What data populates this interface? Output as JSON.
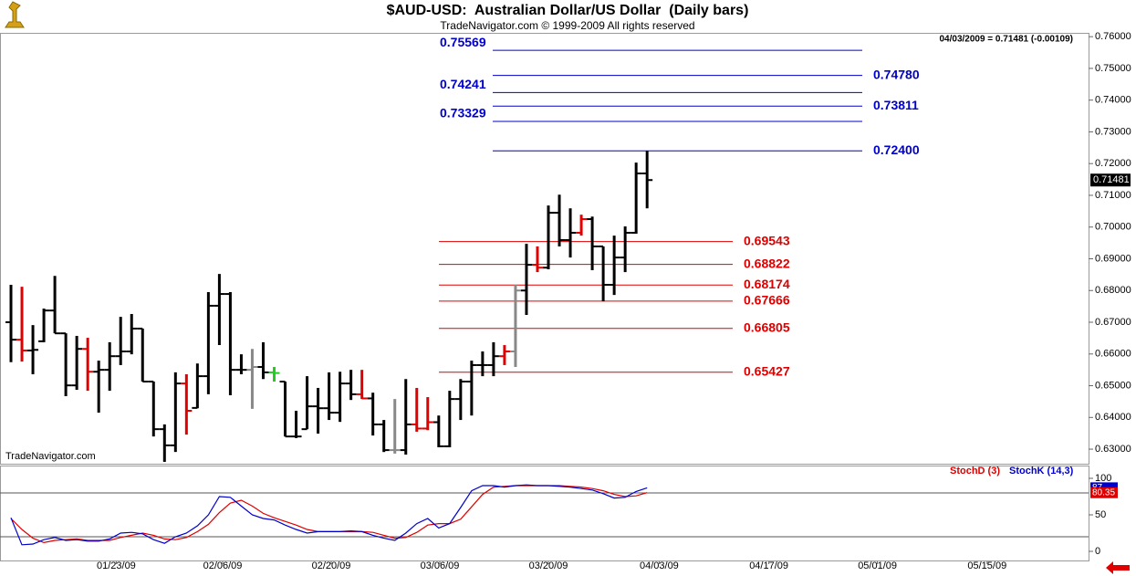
{
  "chart_data": [
    {
      "type": "ohlc",
      "title": "$AUD-USD:  Australian Dollar/US Dollar  (Daily bars)",
      "subtitle": "TradeNavigator.com © 1999-2009 All rights reserved",
      "info": "04/03/2009 = 0.71481 (-0.00109)",
      "watermark": "TradeNavigator.com",
      "last_price": 0.71481,
      "x": [
        0,
        1,
        2,
        3,
        4,
        5,
        6,
        7,
        8,
        9,
        10,
        11,
        12,
        13,
        14,
        15,
        16,
        17,
        18,
        19,
        20,
        21,
        22,
        23,
        24,
        25,
        26,
        27,
        28,
        29,
        30,
        31,
        32,
        33,
        34,
        35,
        36,
        37,
        38,
        39,
        40,
        41,
        42,
        43,
        44,
        45,
        46,
        47,
        48,
        49,
        50,
        51,
        52,
        53,
        54,
        55,
        56,
        57,
        58
      ],
      "open": [
        0.67,
        0.6645,
        0.6611,
        0.664,
        0.6737,
        0.6665,
        0.6501,
        0.6616,
        0.6544,
        0.655,
        0.6593,
        0.6608,
        0.668,
        0.6513,
        0.6363,
        0.6312,
        0.6507,
        0.643,
        0.653,
        0.6752,
        0.6789,
        0.655,
        0.655,
        0.6559,
        0.6542,
        0.6513,
        0.634,
        0.6363,
        0.6435,
        0.6429,
        0.6415,
        0.6507,
        0.6473,
        0.646,
        0.6378,
        0.6297,
        0.6297,
        0.6378,
        0.6365,
        0.6385,
        0.6309,
        0.6458,
        0.6513,
        0.6565,
        0.6565,
        0.6593,
        0.6608,
        0.68,
        0.6881,
        0.6872,
        0.7045,
        0.6959,
        0.6982,
        0.7025,
        0.6939,
        0.6818,
        0.6904,
        0.6982,
        0.7169
      ],
      "high": [
        0.6818,
        0.6812,
        0.6691,
        0.6743,
        0.6846,
        0.6665,
        0.6657,
        0.6651,
        0.6579,
        0.6637,
        0.6717,
        0.6726,
        0.668,
        0.6513,
        0.6378,
        0.6542,
        0.6536,
        0.657,
        0.6795,
        0.6852,
        0.6795,
        0.6599,
        0.6616,
        0.6637,
        0.6559,
        0.6513,
        0.6421,
        0.653,
        0.6493,
        0.6542,
        0.6544,
        0.655,
        0.655,
        0.6478,
        0.6392,
        0.6458,
        0.6521,
        0.6493,
        0.6464,
        0.6406,
        0.6484,
        0.6521,
        0.6579,
        0.6608,
        0.6637,
        0.6628,
        0.6818,
        0.6947,
        0.6939,
        0.7068,
        0.7102,
        0.7059,
        0.7039,
        0.7033,
        0.6939,
        0.6973,
        0.7002,
        0.7203,
        0.724
      ],
      "low": [
        0.6574,
        0.6576,
        0.6536,
        0.6637,
        0.6665,
        0.6467,
        0.6487,
        0.6484,
        0.6415,
        0.6484,
        0.6565,
        0.6599,
        0.6513,
        0.634,
        0.626,
        0.6291,
        0.6346,
        0.6429,
        0.6473,
        0.6628,
        0.647,
        0.6536,
        0.6427,
        0.6521,
        0.6513,
        0.634,
        0.6335,
        0.6363,
        0.6349,
        0.6392,
        0.6386,
        0.6455,
        0.6458,
        0.6343,
        0.6291,
        0.6286,
        0.6283,
        0.6355,
        0.636,
        0.6306,
        0.6306,
        0.6392,
        0.6406,
        0.653,
        0.653,
        0.6565,
        0.6559,
        0.6723,
        0.6858,
        0.6867,
        0.6939,
        0.6904,
        0.6973,
        0.6864,
        0.6766,
        0.6786,
        0.6858,
        0.6979,
        0.7059
      ],
      "close": [
        0.6645,
        0.6611,
        0.6613,
        0.6737,
        0.6665,
        0.6501,
        0.6616,
        0.6544,
        0.655,
        0.6593,
        0.6608,
        0.668,
        0.6513,
        0.6363,
        0.6312,
        0.6507,
        0.6421,
        0.653,
        0.6752,
        0.6789,
        0.655,
        0.655,
        0.6559,
        0.6542,
        0.654,
        0.634,
        0.634,
        0.6435,
        0.6429,
        0.6415,
        0.6507,
        0.6473,
        0.646,
        0.6378,
        0.6297,
        0.6297,
        0.6378,
        0.6365,
        0.6385,
        0.6309,
        0.6458,
        0.6513,
        0.6565,
        0.6565,
        0.6593,
        0.6608,
        0.68,
        0.6881,
        0.6872,
        0.7045,
        0.6959,
        0.6982,
        0.7025,
        0.6939,
        0.6818,
        0.6904,
        0.6982,
        0.7169,
        0.71481
      ],
      "bar_colors": [
        "#000000",
        "#e00000",
        "#000000",
        "#000000",
        "#000000",
        "#000000",
        "#000000",
        "#e00000",
        "#000000",
        "#000000",
        "#000000",
        "#000000",
        "#000000",
        "#000000",
        "#000000",
        "#000000",
        "#e00000",
        "#000000",
        "#000000",
        "#000000",
        "#000000",
        "#000000",
        "#888888",
        "#000000",
        "#22cc22",
        "#000000",
        "#000000",
        "#000000",
        "#000000",
        "#000000",
        "#000000",
        "#000000",
        "#e00000",
        "#000000",
        "#000000",
        "#888888",
        "#000000",
        "#e00000",
        "#e00000",
        "#000000",
        "#000000",
        "#000000",
        "#000000",
        "#000000",
        "#000000",
        "#e00000",
        "#888888",
        "#000000",
        "#e00000",
        "#000000",
        "#000000",
        "#000000",
        "#e00000",
        "#000000",
        "#000000",
        "#000000",
        "#000000",
        "#000000",
        "#000000"
      ],
      "xlim": [
        -1,
        98.25
      ],
      "ylim": [
        0.6257,
        0.7612
      ],
      "yticks": [
        {
          "value": 0.63,
          "label": "0.63000"
        },
        {
          "value": 0.64,
          "label": "0.64000"
        },
        {
          "value": 0.65,
          "label": "0.65000"
        },
        {
          "value": 0.66,
          "label": "0.66000"
        },
        {
          "value": 0.67,
          "label": "0.67000"
        },
        {
          "value": 0.68,
          "label": "0.68000"
        },
        {
          "value": 0.69,
          "label": "0.69000"
        },
        {
          "value": 0.7,
          "label": "0.70000"
        },
        {
          "value": 0.71,
          "label": "0.71000"
        },
        {
          "value": 0.72,
          "label": "0.72000"
        },
        {
          "value": 0.73,
          "label": "0.73000"
        },
        {
          "value": 0.74,
          "label": "0.74000"
        },
        {
          "value": 0.75,
          "label": "0.75000"
        },
        {
          "value": 0.76,
          "label": "0.76000"
        }
      ],
      "projection_levels": [
        {
          "value": 0.75569,
          "color": "#0000cc",
          "label_side": "left"
        },
        {
          "value": 0.7478,
          "label": "0.74780",
          "color": "#0000cc",
          "label_side": "right"
        },
        {
          "value": 0.74241,
          "color": "#0000cc",
          "label_side": "left"
        },
        {
          "value": 0.73811,
          "color": "#0000cc",
          "label_side": "right"
        },
        {
          "value": 0.73329,
          "color": "#0000cc",
          "label_side": "left"
        },
        {
          "value": 0.724,
          "label": "0.72400",
          "color": "#0000cc",
          "label_side": "right"
        }
      ],
      "retracement_levels": [
        {
          "value": 0.69543,
          "color": "#dd0000",
          "label_side": "right"
        },
        {
          "value": 0.68822,
          "color": "#dd0000",
          "label_side": "right"
        },
        {
          "value": 0.68174,
          "color": "#dd0000",
          "label_side": "right"
        },
        {
          "value": 0.67666,
          "color": "#dd0000",
          "label_side": "right"
        },
        {
          "value": 0.66805,
          "color": "#dd0000",
          "label_side": "right"
        },
        {
          "value": 0.65427,
          "color": "#dd0000",
          "label_side": "right"
        }
      ]
    },
    {
      "type": "line",
      "series": [
        {
          "name": "StochD (3)",
          "color": "#dd0000",
          "values": [
            45,
            30,
            18,
            12,
            15,
            16,
            17,
            15,
            15,
            15,
            19,
            22,
            25,
            22,
            17,
            16,
            19,
            27,
            37,
            53,
            66,
            70,
            62,
            52,
            46,
            41,
            36,
            30,
            27,
            27,
            27,
            27,
            27,
            26,
            22,
            18,
            19,
            26,
            36,
            38,
            38,
            44,
            61,
            78,
            88,
            89,
            90,
            90,
            90,
            90,
            90,
            89,
            88,
            86,
            83,
            78,
            75,
            76,
            80.35
          ]
        },
        {
          "name": "StochK (14,3)",
          "color": "#0000cc",
          "values": [
            46,
            9,
            10,
            16,
            19,
            15,
            16,
            14,
            14,
            17,
            25,
            26,
            24,
            16,
            11,
            20,
            25,
            35,
            50,
            75,
            74,
            62,
            50,
            45,
            43,
            36,
            30,
            25,
            27,
            27,
            27,
            28,
            27,
            22,
            18,
            15,
            25,
            38,
            45,
            32,
            38,
            60,
            83,
            90,
            90,
            88,
            90,
            91,
            90,
            90,
            89,
            88,
            86,
            84,
            79,
            73,
            74,
            82,
            87
          ]
        }
      ],
      "xlim": [
        -1,
        98.25
      ],
      "xticks": [
        {
          "value": 9.6,
          "label": "01/23/09"
        },
        {
          "value": 19.3,
          "label": "02/06/09"
        },
        {
          "value": 29.2,
          "label": "02/20/09"
        },
        {
          "value": 39.1,
          "label": "03/06/09"
        },
        {
          "value": 49,
          "label": "03/20/09"
        },
        {
          "value": 59.1,
          "label": "04/03/09"
        },
        {
          "value": 69.1,
          "label": "04/17/09"
        },
        {
          "value": 79,
          "label": "05/01/09"
        },
        {
          "value": 89,
          "label": "05/15/09"
        }
      ],
      "ylim": [
        -13.75,
        117.5
      ],
      "yticks": [
        0,
        50,
        100
      ],
      "hlines": [
        20,
        80
      ]
    }
  ]
}
